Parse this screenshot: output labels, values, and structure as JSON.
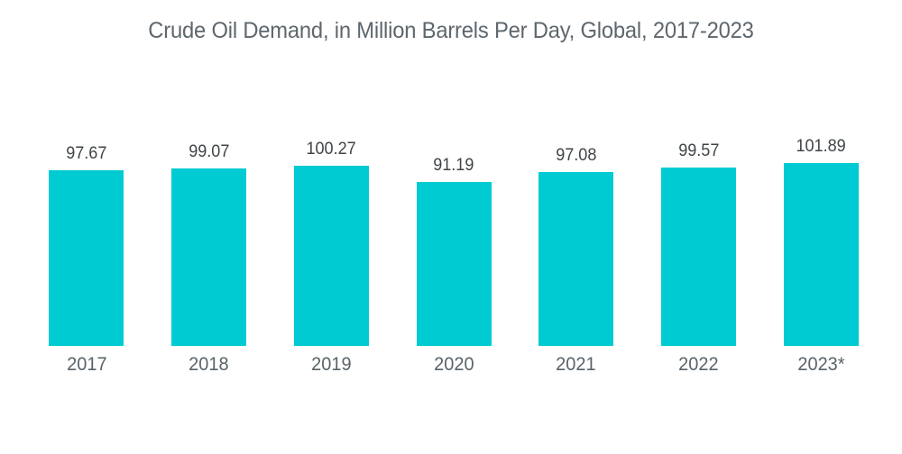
{
  "chart_data": {
    "type": "bar",
    "title": "Crude Oil Demand, in Million Barrels Per Day, Global, 2017-2023",
    "categories": [
      "2017",
      "2018",
      "2019",
      "2020",
      "2021",
      "2022",
      "2023*"
    ],
    "values": [
      97.67,
      99.07,
      100.27,
      91.19,
      97.08,
      99.57,
      101.89
    ],
    "value_labels": [
      "97.67",
      "99.07",
      "100.27",
      "91.19",
      "97.08",
      "99.57",
      "101.89"
    ],
    "xlabel": "",
    "ylabel": "",
    "ylim": [
      0,
      101.89
    ],
    "grid": false,
    "axes_visible": false,
    "legend": "none",
    "value_label_position": "above-bar",
    "colors": {
      "bar": "#00CBD2",
      "title_text": "#5d676d",
      "value_text": "#3f4447",
      "axis_text": "#596368",
      "background": "#ffffff"
    }
  }
}
